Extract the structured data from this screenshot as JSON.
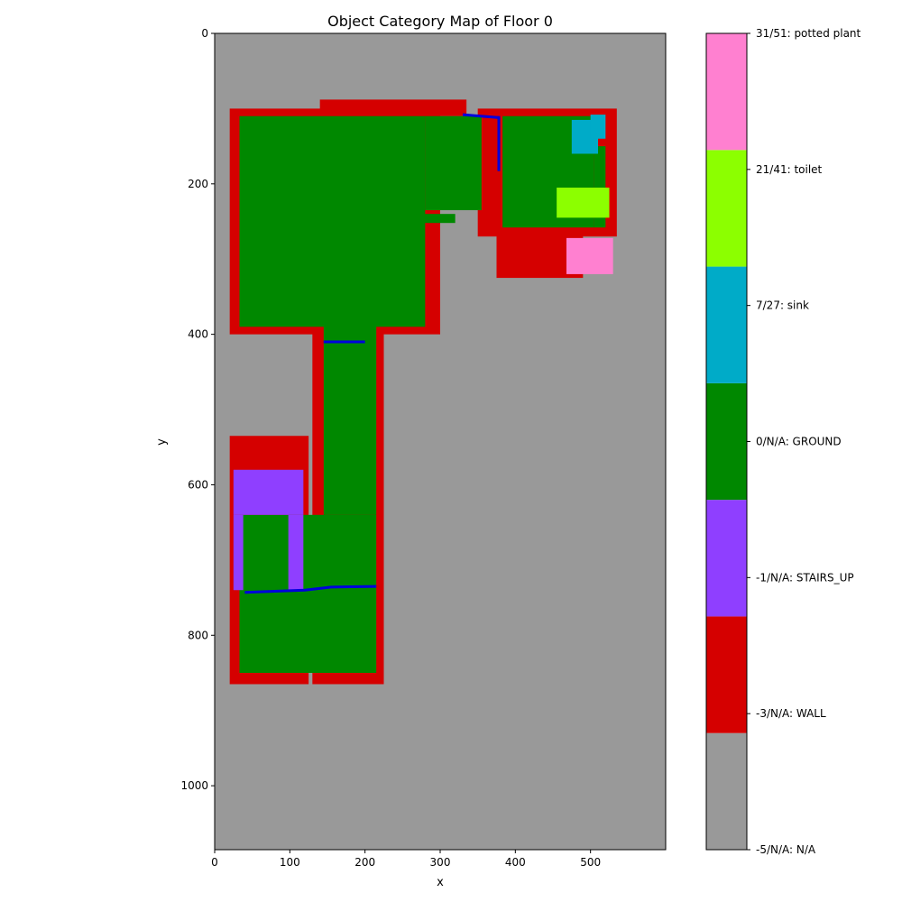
{
  "chart_data": {
    "type": "heatmap",
    "title": "Object Category Map of Floor 0",
    "xlabel": "x",
    "ylabel": "y",
    "xlim": [
      0,
      600
    ],
    "ylim": [
      1085,
      0
    ],
    "xticks": [
      0,
      100,
      200,
      300,
      400,
      500
    ],
    "yticks": [
      0,
      200,
      400,
      600,
      800,
      1000
    ],
    "colorbar": {
      "placement": "right",
      "categories": [
        {
          "label": "-5/N/A: N/A",
          "color": "#999999"
        },
        {
          "label": "-3/N/A: WALL",
          "color": "#d50000"
        },
        {
          "label": "-1/N/A: STAIRS_UP",
          "color": "#8f3fff"
        },
        {
          "label": "0/N/A: GROUND",
          "color": "#008800"
        },
        {
          "label": "7/27: sink",
          "color": "#00abc8"
        },
        {
          "label": "21/41: toilet",
          "color": "#8cff00"
        },
        {
          "label": "31/51: potted plant",
          "color": "#ff80d0"
        }
      ]
    },
    "regions": [
      {
        "category": "WALL",
        "rects": [
          [
            20,
            100,
            300,
            400
          ],
          [
            130,
            370,
            225,
            865
          ],
          [
            20,
            535,
            125,
            865
          ],
          [
            350,
            100,
            535,
            270
          ],
          [
            375,
            265,
            490,
            325
          ],
          [
            140,
            88,
            335,
            110
          ]
        ]
      },
      {
        "category": "GROUND",
        "rects": [
          [
            33,
            110,
            280,
            390
          ],
          [
            280,
            110,
            355,
            235
          ],
          [
            145,
            380,
            215,
            640
          ],
          [
            33,
            640,
            215,
            850
          ],
          [
            383,
            110,
            505,
            258
          ],
          [
            505,
            150,
            520,
            258
          ]
        ]
      },
      {
        "category": "STAIRS_UP",
        "rects": [
          [
            25,
            580,
            118,
            640
          ],
          [
            25,
            640,
            38,
            740
          ],
          [
            98,
            640,
            118,
            740
          ]
        ]
      },
      {
        "category": "sink",
        "rects": [
          [
            475,
            115,
            510,
            160
          ],
          [
            500,
            108,
            520,
            140
          ]
        ]
      },
      {
        "category": "toilet",
        "rects": [
          [
            455,
            205,
            525,
            245
          ]
        ]
      },
      {
        "category": "potted plant",
        "rects": [
          [
            468,
            272,
            530,
            320
          ]
        ]
      },
      {
        "category": "GROUND",
        "rects": [
          [
            268,
            240,
            320,
            252
          ]
        ]
      }
    ],
    "boundaries": [
      [
        [
          145,
          410
        ],
        [
          200,
          410
        ]
      ],
      [
        [
          40,
          743
        ],
        [
          120,
          740
        ],
        [
          155,
          736
        ],
        [
          215,
          735
        ]
      ],
      [
        [
          378,
          110
        ],
        [
          378,
          183
        ]
      ],
      [
        [
          330,
          108
        ],
        [
          378,
          112
        ]
      ]
    ]
  }
}
